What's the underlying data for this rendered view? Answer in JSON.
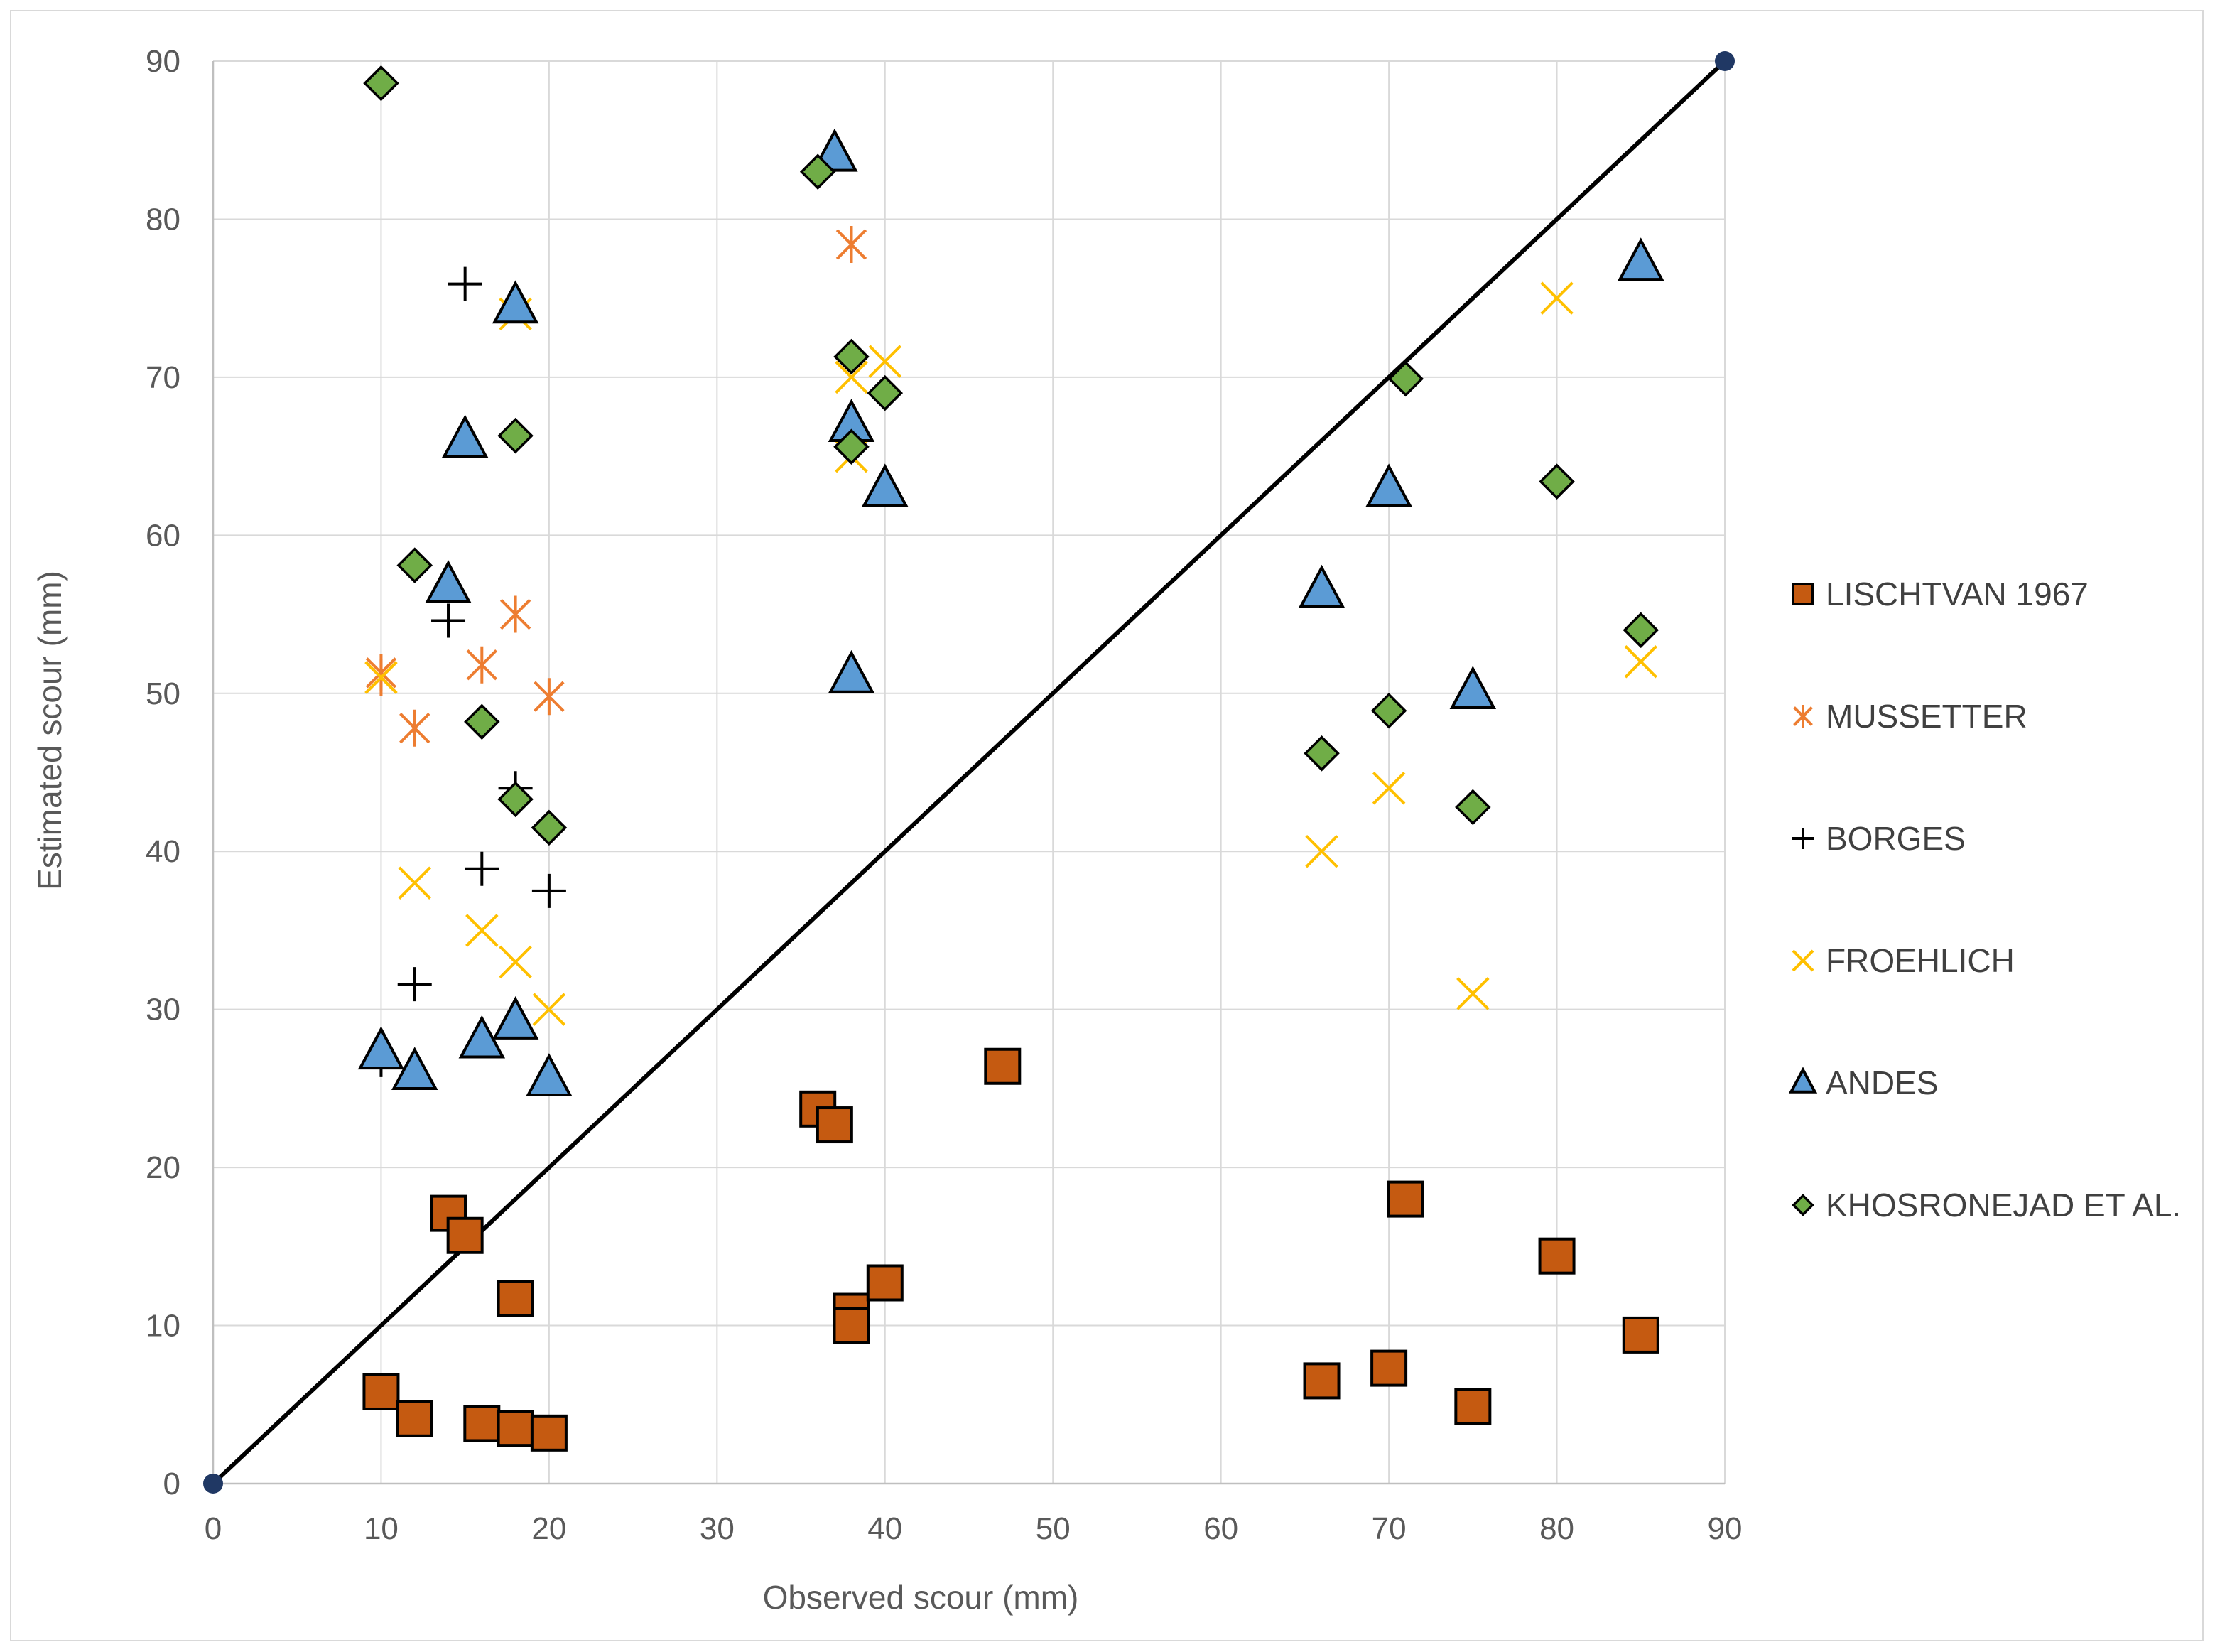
{
  "chart_data": {
    "type": "scatter",
    "title": "",
    "xlabel": "Observed scour (mm)",
    "ylabel": "Estimated scour (mm)",
    "xlim": [
      0,
      90
    ],
    "ylim": [
      0,
      90
    ],
    "xticks": [
      0,
      10,
      20,
      30,
      40,
      50,
      60,
      70,
      80,
      90
    ],
    "yticks": [
      0,
      10,
      20,
      30,
      40,
      50,
      60,
      70,
      80,
      90
    ],
    "grid": true,
    "legend_position": "right",
    "reference_line": {
      "name": "1:1 line",
      "points": [
        [
          0,
          0
        ],
        [
          90,
          90
        ]
      ],
      "color": "#000000"
    },
    "series": [
      {
        "name": "LISCHTVAN 1967",
        "marker": "square",
        "color": "#C55A11",
        "points": [
          [
            10,
            5.8
          ],
          [
            12,
            4.1
          ],
          [
            14,
            17.1
          ],
          [
            15,
            15.7
          ],
          [
            16,
            3.8
          ],
          [
            18,
            3.5
          ],
          [
            18,
            11.7
          ],
          [
            20,
            3.2
          ],
          [
            36,
            23.7
          ],
          [
            37,
            22.7
          ],
          [
            38,
            10.9
          ],
          [
            38,
            10.0
          ],
          [
            40,
            12.7
          ],
          [
            47,
            26.4
          ],
          [
            66,
            6.5
          ],
          [
            70,
            7.3
          ],
          [
            71,
            18.0
          ],
          [
            75,
            4.9
          ],
          [
            80,
            14.4
          ],
          [
            85,
            9.4
          ]
        ]
      },
      {
        "name": "MUSSETTER",
        "marker": "asterisk",
        "color": "#ED7D31",
        "points": [
          [
            10,
            51.3
          ],
          [
            10,
            51.0
          ],
          [
            12,
            47.8
          ],
          [
            16,
            51.8
          ],
          [
            18,
            55.0
          ],
          [
            20,
            49.8
          ],
          [
            38,
            78.4
          ]
        ]
      },
      {
        "name": "BORGES",
        "marker": "plus",
        "color": "#000000",
        "points": [
          [
            10,
            26.8
          ],
          [
            12,
            31.6
          ],
          [
            14,
            54.6
          ],
          [
            15,
            75.9
          ],
          [
            16,
            38.9
          ],
          [
            18,
            44.0
          ],
          [
            20,
            37.5
          ],
          [
            38,
            66.1
          ]
        ]
      },
      {
        "name": "FROEHLICH",
        "marker": "x",
        "color": "#FFC000",
        "points": [
          [
            10,
            51.0
          ],
          [
            12,
            38.0
          ],
          [
            16,
            35.0
          ],
          [
            18,
            33.0
          ],
          [
            18,
            74.0
          ],
          [
            20,
            30.0
          ],
          [
            38,
            70.0
          ],
          [
            38,
            65.0
          ],
          [
            40,
            71.0
          ],
          [
            66,
            40.0
          ],
          [
            70,
            44.0
          ],
          [
            75,
            31.0
          ],
          [
            80,
            75.0
          ],
          [
            85,
            52.0
          ]
        ]
      },
      {
        "name": "ANDES",
        "marker": "triangle",
        "color": "#5B9BD5",
        "points": [
          [
            10,
            27.3
          ],
          [
            12,
            26.0
          ],
          [
            14,
            56.8
          ],
          [
            15,
            66.0
          ],
          [
            16,
            28.0
          ],
          [
            18,
            29.2
          ],
          [
            18,
            74.5
          ],
          [
            20,
            25.6
          ],
          [
            37,
            84.1
          ],
          [
            38,
            67.0
          ],
          [
            38,
            51.1
          ],
          [
            40,
            62.9
          ],
          [
            66,
            56.5
          ],
          [
            70,
            62.9
          ],
          [
            75,
            50.1
          ],
          [
            85,
            77.2
          ]
        ]
      },
      {
        "name": "KHOSRONEJAD ET AL.",
        "marker": "diamond",
        "color": "#70AD47",
        "points": [
          [
            10,
            88.6
          ],
          [
            12,
            58.1
          ],
          [
            16,
            48.2
          ],
          [
            18,
            66.3
          ],
          [
            18,
            43.3
          ],
          [
            20,
            41.5
          ],
          [
            36,
            83.0
          ],
          [
            38,
            71.3
          ],
          [
            38,
            65.6
          ],
          [
            40,
            69.0
          ],
          [
            66,
            46.2
          ],
          [
            70,
            48.9
          ],
          [
            71,
            69.9
          ],
          [
            75,
            42.8
          ],
          [
            80,
            63.4
          ],
          [
            85,
            54.0
          ]
        ]
      }
    ]
  }
}
